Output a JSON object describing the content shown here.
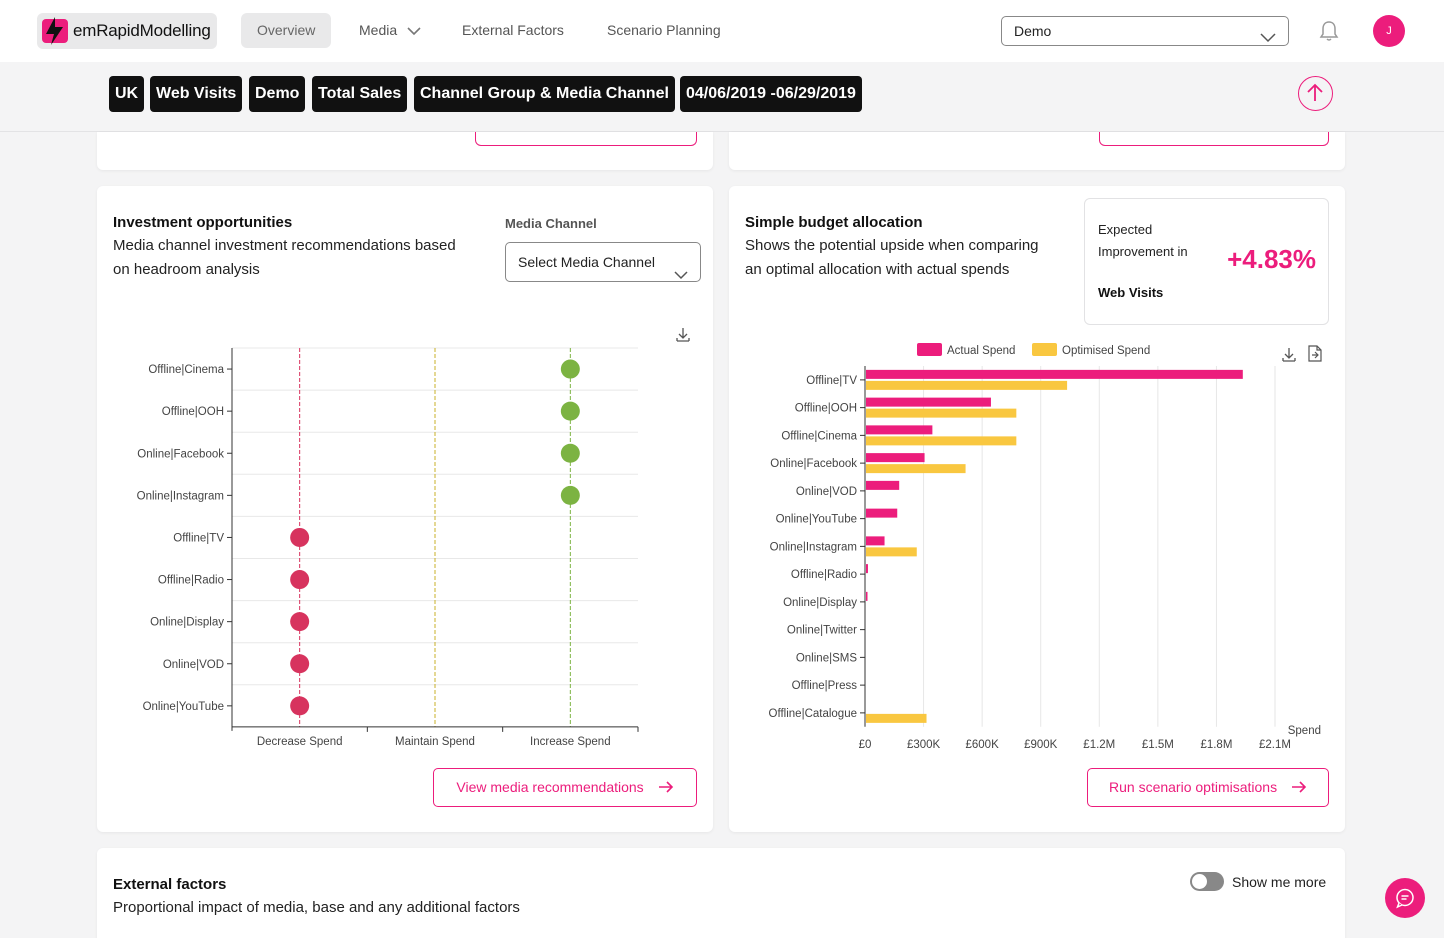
{
  "app": {
    "logo_text": "emRapidModelling"
  },
  "nav": {
    "items": [
      "Overview",
      "Media",
      "External Factors",
      "Scenario Planning"
    ],
    "demo_select_value": "Demo",
    "avatar_initial": "J"
  },
  "filters": {
    "chips": [
      "UK",
      "Web Visits",
      "Demo",
      "Total Sales",
      "Channel Group & Media Channel",
      "04/06/2019 -06/29/2019"
    ]
  },
  "investment": {
    "title": "Investment opportunities",
    "description": "Media channel investment recommendations based on headroom analysis",
    "field_label": "Media Channel",
    "select_placeholder": "Select Media Channel",
    "button_label": "View media recommendations"
  },
  "budget": {
    "title": "Simple budget allocation",
    "description": "Shows the potential upside when comparing an optimal allocation with actual spends",
    "improvement_label": "Expected Improvement in",
    "improvement_metric": "Web Visits",
    "improvement_value": "+4.83%",
    "button_label": "Run scenario optimisations"
  },
  "external": {
    "title": "External factors",
    "description": "Proportional impact of media, base and any additional factors",
    "toggle_label": "Show me more",
    "toggle_on": false
  },
  "colors": {
    "accent": "#ec1d7c",
    "decrease": "#d7335e",
    "increase": "#7cb342",
    "actual": "#ec1d7c",
    "optimised": "#f9c740"
  },
  "chart_data": [
    {
      "type": "scatter",
      "categories_x": [
        "Decrease Spend",
        "Maintain Spend",
        "Increase Spend"
      ],
      "categories_y": [
        "Offline|Cinema",
        "Offline|OOH",
        "Online|Facebook",
        "Online|Instagram",
        "Offline|TV",
        "Offline|Radio",
        "Online|Display",
        "Online|VOD",
        "Online|YouTube"
      ],
      "points": [
        {
          "channel": "Offline|Cinema",
          "recommendation": "Increase Spend"
        },
        {
          "channel": "Offline|OOH",
          "recommendation": "Increase Spend"
        },
        {
          "channel": "Online|Facebook",
          "recommendation": "Increase Spend"
        },
        {
          "channel": "Online|Instagram",
          "recommendation": "Increase Spend"
        },
        {
          "channel": "Offline|TV",
          "recommendation": "Decrease Spend"
        },
        {
          "channel": "Offline|Radio",
          "recommendation": "Decrease Spend"
        },
        {
          "channel": "Online|Display",
          "recommendation": "Decrease Spend"
        },
        {
          "channel": "Online|VOD",
          "recommendation": "Decrease Spend"
        },
        {
          "channel": "Online|YouTube",
          "recommendation": "Decrease Spend"
        }
      ],
      "grid": true
    },
    {
      "type": "bar",
      "orientation": "horizontal",
      "categories": [
        "Offline|TV",
        "Offline|OOH",
        "Offline|Cinema",
        "Online|Facebook",
        "Online|VOD",
        "Online|YouTube",
        "Online|Instagram",
        "Offline|Radio",
        "Online|Display",
        "Online|Twitter",
        "Online|SMS",
        "Offline|Press",
        "Offline|Catalogue"
      ],
      "series": [
        {
          "name": "Actual Spend",
          "values": [
            1930000,
            640000,
            340000,
            300000,
            170000,
            160000,
            95000,
            10000,
            5000,
            0,
            0,
            0,
            0
          ]
        },
        {
          "name": "Optimised Spend",
          "values": [
            1030000,
            770000,
            770000,
            510000,
            0,
            0,
            260000,
            0,
            0,
            0,
            0,
            0,
            310000
          ]
        }
      ],
      "xlabel": "Spend",
      "xticks": [
        "£0",
        "£300K",
        "£600K",
        "£900K",
        "£1.2M",
        "£1.5M",
        "£1.8M",
        "£2.1M"
      ],
      "xlim": [
        0,
        2100000
      ],
      "legend_position": "top",
      "grid": true
    }
  ]
}
